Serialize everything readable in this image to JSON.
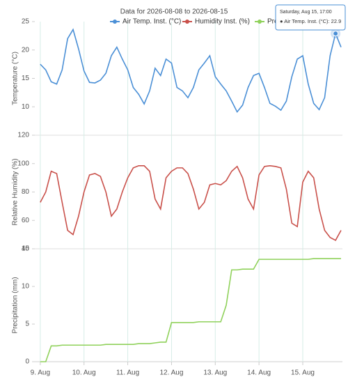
{
  "chart_data": [
    {
      "type": "line",
      "title": "Data for 2026-08-08 to 2026-08-15",
      "ylabel": "Temperature (°C)",
      "x": [
        "2026-08-09 00:00",
        "2026-08-09 03:00",
        "2026-08-09 06:00",
        "2026-08-09 09:00",
        "2026-08-09 12:00",
        "2026-08-09 15:00",
        "2026-08-09 18:00",
        "2026-08-09 21:00",
        "2026-08-10 00:00",
        "2026-08-10 03:00",
        "2026-08-10 06:00",
        "2026-08-10 09:00",
        "2026-08-10 12:00",
        "2026-08-10 15:00",
        "2026-08-10 18:00",
        "2026-08-10 21:00",
        "2026-08-11 00:00",
        "2026-08-11 03:00",
        "2026-08-11 06:00",
        "2026-08-11 09:00",
        "2026-08-11 12:00",
        "2026-08-11 15:00",
        "2026-08-11 18:00",
        "2026-08-11 21:00",
        "2026-08-12 00:00",
        "2026-08-12 03:00",
        "2026-08-12 06:00",
        "2026-08-12 09:00",
        "2026-08-12 12:00",
        "2026-08-12 15:00",
        "2026-08-12 18:00",
        "2026-08-12 21:00",
        "2026-08-13 00:00",
        "2026-08-13 03:00",
        "2026-08-13 06:00",
        "2026-08-13 09:00",
        "2026-08-13 12:00",
        "2026-08-13 15:00",
        "2026-08-13 18:00",
        "2026-08-13 21:00",
        "2026-08-14 00:00",
        "2026-08-14 03:00",
        "2026-08-14 06:00",
        "2026-08-14 09:00",
        "2026-08-14 12:00",
        "2026-08-14 15:00",
        "2026-08-14 18:00",
        "2026-08-14 21:00",
        "2026-08-15 00:00",
        "2026-08-15 03:00",
        "2026-08-15 06:00",
        "2026-08-15 09:00",
        "2026-08-15 12:00",
        "2026-08-15 15:00",
        "2026-08-15 18:00",
        "2026-08-15 21:00"
      ],
      "series": [
        {
          "name": "Air Temp. Inst. (°C)",
          "color": "#4a8fd6",
          "values": [
            17.5,
            16.5,
            14.4,
            14.0,
            16.5,
            22.0,
            23.6,
            20.2,
            16.3,
            14.3,
            14.2,
            14.7,
            15.9,
            19.0,
            20.5,
            18.4,
            16.5,
            13.4,
            12.2,
            10.5,
            12.8,
            16.8,
            15.5,
            18.4,
            17.7,
            13.4,
            12.8,
            11.6,
            13.4,
            16.5,
            17.7,
            19.0,
            15.3,
            14.0,
            12.8,
            11.0,
            9.1,
            10.3,
            13.4,
            15.5,
            15.9,
            13.4,
            10.6,
            10.1,
            9.4,
            11.0,
            15.3,
            18.4,
            19.0,
            14.0,
            10.6,
            9.5,
            11.6,
            19.0,
            22.9,
            20.5
          ]
        }
      ],
      "ylim": [
        5,
        25
      ],
      "yticks": [
        10,
        15,
        20,
        25
      ],
      "tooltip": {
        "title": "Saturday, Aug 15, 17:00",
        "text": "● Air Temp. Inst. (°C): 22.9"
      }
    },
    {
      "type": "line",
      "ylabel": "Relative Humidity (%)",
      "x": [
        "2026-08-09 00:00",
        "2026-08-09 03:00",
        "2026-08-09 06:00",
        "2026-08-09 09:00",
        "2026-08-09 12:00",
        "2026-08-09 15:00",
        "2026-08-09 18:00",
        "2026-08-09 21:00",
        "2026-08-10 00:00",
        "2026-08-10 03:00",
        "2026-08-10 06:00",
        "2026-08-10 09:00",
        "2026-08-10 12:00",
        "2026-08-10 15:00",
        "2026-08-10 18:00",
        "2026-08-10 21:00",
        "2026-08-11 00:00",
        "2026-08-11 03:00",
        "2026-08-11 06:00",
        "2026-08-11 09:00",
        "2026-08-11 12:00",
        "2026-08-11 15:00",
        "2026-08-11 18:00",
        "2026-08-11 21:00",
        "2026-08-12 00:00",
        "2026-08-12 03:00",
        "2026-08-12 06:00",
        "2026-08-12 09:00",
        "2026-08-12 12:00",
        "2026-08-12 15:00",
        "2026-08-12 18:00",
        "2026-08-12 21:00",
        "2026-08-13 00:00",
        "2026-08-13 03:00",
        "2026-08-13 06:00",
        "2026-08-13 09:00",
        "2026-08-13 12:00",
        "2026-08-13 15:00",
        "2026-08-13 18:00",
        "2026-08-13 21:00",
        "2026-08-14 00:00",
        "2026-08-14 03:00",
        "2026-08-14 06:00",
        "2026-08-14 09:00",
        "2026-08-14 12:00",
        "2026-08-14 15:00",
        "2026-08-14 18:00",
        "2026-08-14 21:00",
        "2026-08-15 00:00",
        "2026-08-15 03:00",
        "2026-08-15 06:00",
        "2026-08-15 09:00",
        "2026-08-15 12:00",
        "2026-08-15 15:00",
        "2026-08-15 18:00",
        "2026-08-15 21:00"
      ],
      "series": [
        {
          "name": "Humidity Inst. (%)",
          "color": "#c9504a",
          "values": [
            72.7,
            80,
            94.6,
            93,
            72.7,
            53,
            50,
            63,
            80,
            92,
            93,
            91,
            80,
            63,
            68,
            80,
            90,
            97,
            98.5,
            98.5,
            94.6,
            75,
            68,
            90,
            94.6,
            97,
            97,
            93,
            82,
            68,
            72.7,
            85,
            86,
            85,
            88,
            94.6,
            98,
            90,
            75,
            68,
            92,
            98,
            98.5,
            98,
            97,
            82,
            58,
            55.6,
            87,
            94.6,
            90,
            68,
            53,
            48,
            46,
            53
          ]
        }
      ],
      "ylim": [
        40,
        120
      ],
      "yticks": [
        40,
        60,
        80,
        100,
        120
      ]
    },
    {
      "type": "line",
      "ylabel": "Precipitation (mm)",
      "x": [
        "2026-08-09 00:00",
        "2026-08-09 03:00",
        "2026-08-09 06:00",
        "2026-08-09 09:00",
        "2026-08-09 12:00",
        "2026-08-09 15:00",
        "2026-08-09 18:00",
        "2026-08-09 21:00",
        "2026-08-10 00:00",
        "2026-08-10 03:00",
        "2026-08-10 06:00",
        "2026-08-10 09:00",
        "2026-08-10 12:00",
        "2026-08-10 15:00",
        "2026-08-10 18:00",
        "2026-08-10 21:00",
        "2026-08-11 00:00",
        "2026-08-11 03:00",
        "2026-08-11 06:00",
        "2026-08-11 09:00",
        "2026-08-11 12:00",
        "2026-08-11 15:00",
        "2026-08-11 18:00",
        "2026-08-11 21:00",
        "2026-08-12 00:00",
        "2026-08-12 03:00",
        "2026-08-12 06:00",
        "2026-08-12 09:00",
        "2026-08-12 12:00",
        "2026-08-12 15:00",
        "2026-08-12 18:00",
        "2026-08-12 21:00",
        "2026-08-13 00:00",
        "2026-08-13 03:00",
        "2026-08-13 06:00",
        "2026-08-13 09:00",
        "2026-08-13 12:00",
        "2026-08-13 15:00",
        "2026-08-13 18:00",
        "2026-08-13 21:00",
        "2026-08-14 00:00",
        "2026-08-14 03:00",
        "2026-08-14 06:00",
        "2026-08-14 09:00",
        "2026-08-14 12:00",
        "2026-08-14 15:00",
        "2026-08-14 18:00",
        "2026-08-14 21:00",
        "2026-08-15 00:00",
        "2026-08-15 03:00",
        "2026-08-15 06:00",
        "2026-08-15 09:00",
        "2026-08-15 12:00",
        "2026-08-15 15:00",
        "2026-08-15 18:00",
        "2026-08-15 21:00"
      ],
      "series": [
        {
          "name": "Precipitation (mm)",
          "color": "#8fd15a",
          "values": [
            0,
            0,
            2.1,
            2.1,
            2.2,
            2.2,
            2.2,
            2.2,
            2.2,
            2.2,
            2.2,
            2.2,
            2.3,
            2.3,
            2.3,
            2.3,
            2.3,
            2.3,
            2.4,
            2.4,
            2.4,
            2.5,
            2.6,
            2.6,
            5.2,
            5.2,
            5.2,
            5.2,
            5.2,
            5.3,
            5.3,
            5.3,
            5.3,
            5.3,
            7.5,
            12.2,
            12.2,
            12.3,
            12.3,
            12.3,
            13.6,
            13.6,
            13.6,
            13.6,
            13.6,
            13.6,
            13.6,
            13.6,
            13.6,
            13.6,
            13.7,
            13.7,
            13.7,
            13.7,
            13.7,
            13.7
          ]
        }
      ],
      "ylim": [
        0,
        15
      ],
      "yticks": [
        0,
        5,
        10,
        15
      ],
      "xlim": [
        "2026-08-08 21:00",
        "2026-08-15 21:00"
      ],
      "xticks": [
        {
          "value": "2026-08-09 00:00",
          "label": "9. Aug"
        },
        {
          "value": "2026-08-10 00:00",
          "label": "10. Aug"
        },
        {
          "value": "2026-08-11 00:00",
          "label": "11. Aug"
        },
        {
          "value": "2026-08-12 00:00",
          "label": "12. Aug"
        },
        {
          "value": "2026-08-13 00:00",
          "label": "13. Aug"
        },
        {
          "value": "2026-08-14 00:00",
          "label": "14. Aug"
        },
        {
          "value": "2026-08-15 00:00",
          "label": "15. Aug"
        }
      ]
    }
  ]
}
